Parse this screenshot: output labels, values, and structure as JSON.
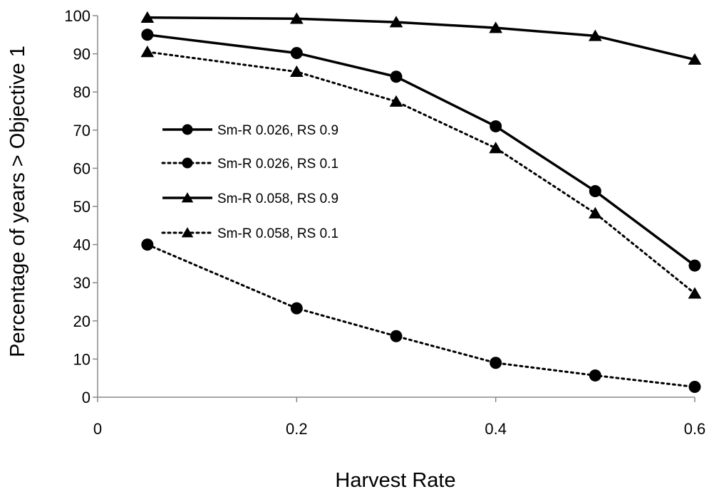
{
  "chart_data": {
    "type": "line",
    "title": "",
    "xlabel": "Harvest Rate",
    "ylabel": "Percentage of years > Objective 1",
    "xlim": [
      0,
      0.6
    ],
    "ylim": [
      0,
      100
    ],
    "xticks": [
      0,
      0.2,
      0.4,
      0.6
    ],
    "xtick_labels": [
      "0",
      "0.2",
      "0.4",
      "0.6"
    ],
    "yticks": [
      0,
      10,
      20,
      30,
      40,
      50,
      60,
      70,
      80,
      90,
      100
    ],
    "ytick_labels": [
      "0",
      "10",
      "20",
      "30",
      "40",
      "50",
      "60",
      "70",
      "80",
      "90",
      "100"
    ],
    "grid": false,
    "legend_position": "center-left",
    "x": [
      0.05,
      0.2,
      0.3,
      0.4,
      0.5,
      0.6
    ],
    "series": [
      {
        "name": "Sm-R 0.026, RS  0.9",
        "line_style": "solid",
        "marker": "circle",
        "color": "#000000",
        "values": [
          95,
          90.2,
          84,
          71,
          54,
          34.5
        ]
      },
      {
        "name": "Sm-R 0.026, RS 0.1",
        "line_style": "dotted",
        "marker": "circle",
        "color": "#000000",
        "values": [
          40,
          23.3,
          16,
          9,
          5.7,
          2.7
        ]
      },
      {
        "name": "Sm-R 0.058, RS 0.9",
        "line_style": "solid",
        "marker": "triangle",
        "color": "#000000",
        "values": [
          99.5,
          99.2,
          98.3,
          96.8,
          94.7,
          88.5
        ]
      },
      {
        "name": "Sm-R 0.058, RS 0.1",
        "line_style": "dotted",
        "marker": "triangle",
        "color": "#000000",
        "values": [
          90.5,
          85.3,
          77.5,
          65.3,
          48.2,
          27.2
        ]
      }
    ]
  }
}
